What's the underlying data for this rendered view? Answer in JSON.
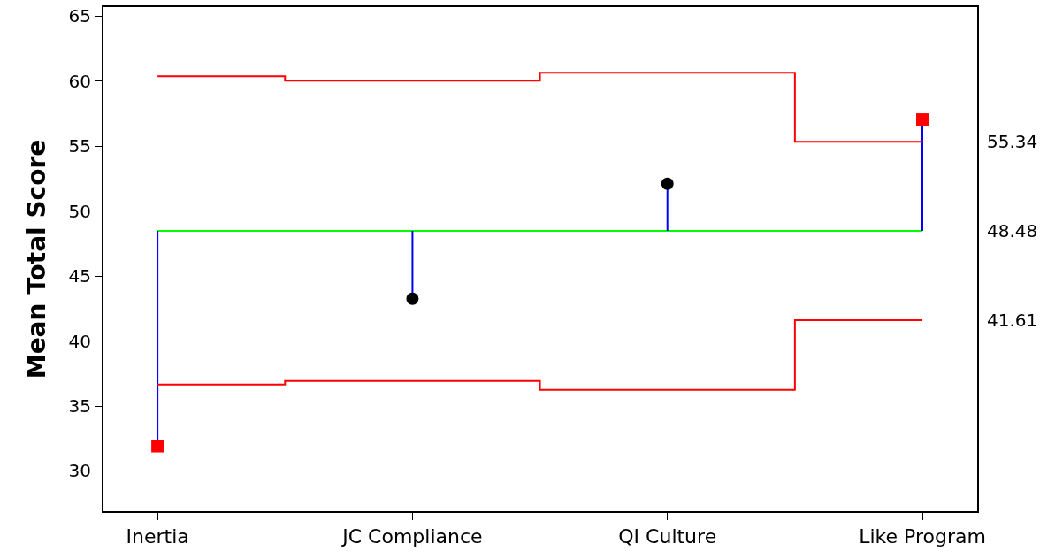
{
  "chart_data": {
    "type": "scatter",
    "ylabel": "Mean Total Score",
    "categories": [
      "Inertia",
      "JC Compliance",
      "QI Culture",
      "Like Program"
    ],
    "ylim": [
      26.9,
      65.7
    ],
    "yticks": [
      30,
      35,
      40,
      45,
      50,
      55,
      60,
      65
    ],
    "grid": false,
    "y2lim": [
      26.9,
      65.7
    ],
    "y2ticks": [
      41.61,
      48.48,
      55.34
    ],
    "ref_lines": [
      {
        "axis": "y",
        "value": 48.48,
        "color": "#00ff00"
      }
    ],
    "series": [
      {
        "type": "step",
        "axis": "y2",
        "color": "#ff0000",
        "values": [
          60.38,
          60.04,
          60.65,
          55.34
        ],
        "marker": "none"
      },
      {
        "type": "step",
        "axis": "y2",
        "color": "#ff0000",
        "values": [
          36.65,
          36.93,
          36.25,
          41.61
        ],
        "marker": "none"
      },
      {
        "color": "#0000ff",
        "colors": [
          "#ff0000",
          null,
          null,
          "#ff0000"
        ],
        "marker": "square",
        "values": [
          31.9,
          null,
          null,
          57.05
        ],
        "errors": [
          [
            31.9,
            48.48
          ],
          null,
          null,
          [
            48.48,
            57.05
          ]
        ]
      },
      {
        "color": "#0000ff",
        "colors": [
          null,
          "#000000",
          "#000000",
          null
        ],
        "marker": "circle",
        "values": [
          null,
          43.25,
          52.1,
          null
        ],
        "errors": [
          null,
          [
            43.25,
            48.48
          ],
          [
            48.48,
            52.1
          ],
          null
        ]
      }
    ]
  }
}
